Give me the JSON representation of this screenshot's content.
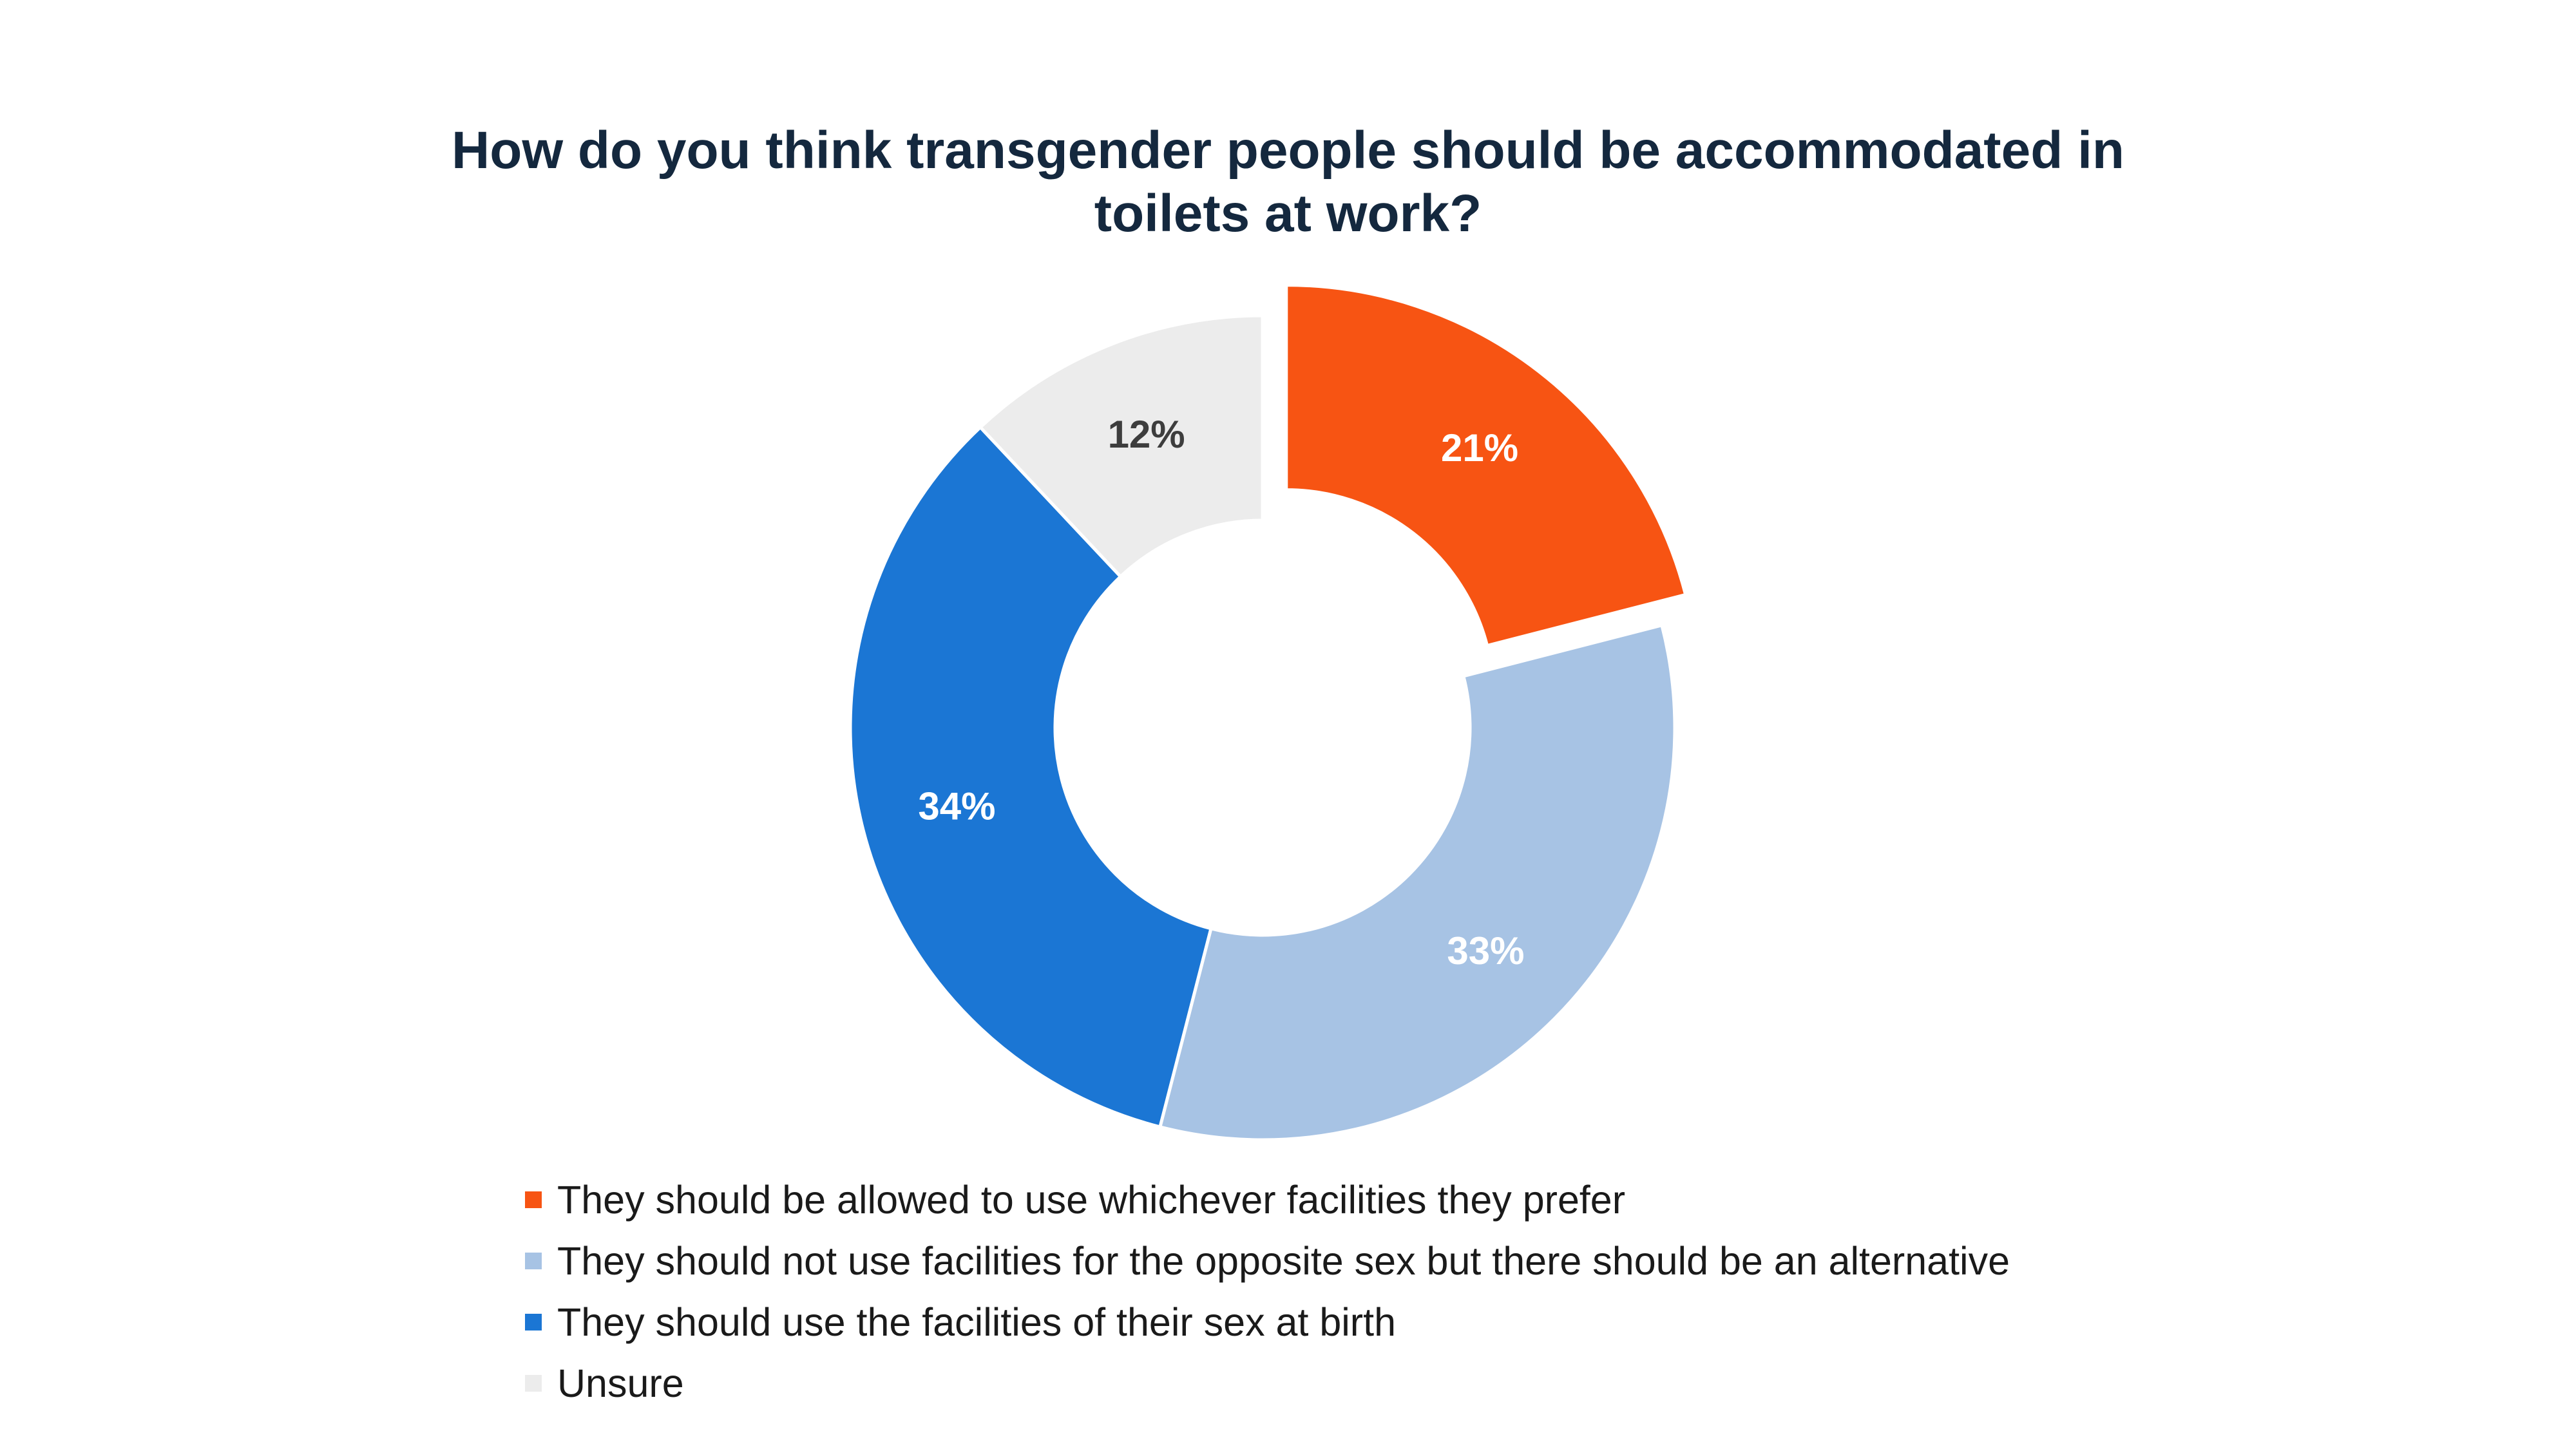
{
  "chart_data": {
    "type": "pie",
    "title_lines": [
      "How do you think transgender people should be accommodated in",
      "toilets at work?"
    ],
    "categories": [
      "They should be allowed to use whichever facilities they prefer",
      "They should not use facilities for the opposite sex but there should be an alternative",
      "They should use the facilities of their sex at birth",
      "Unsure"
    ],
    "values": [
      21,
      33,
      34,
      12
    ],
    "data_labels": [
      "21%",
      "33%",
      "34%",
      "12%"
    ],
    "colors": [
      "#f75413",
      "#a7c3e4",
      "#1b76d4",
      "#ececec"
    ],
    "label_colors": [
      "#ffffff",
      "#ffffff",
      "#ffffff",
      "#3d3d3d"
    ],
    "exploded": [
      true,
      false,
      false,
      false
    ],
    "donut": true,
    "legend_position": "bottom"
  }
}
